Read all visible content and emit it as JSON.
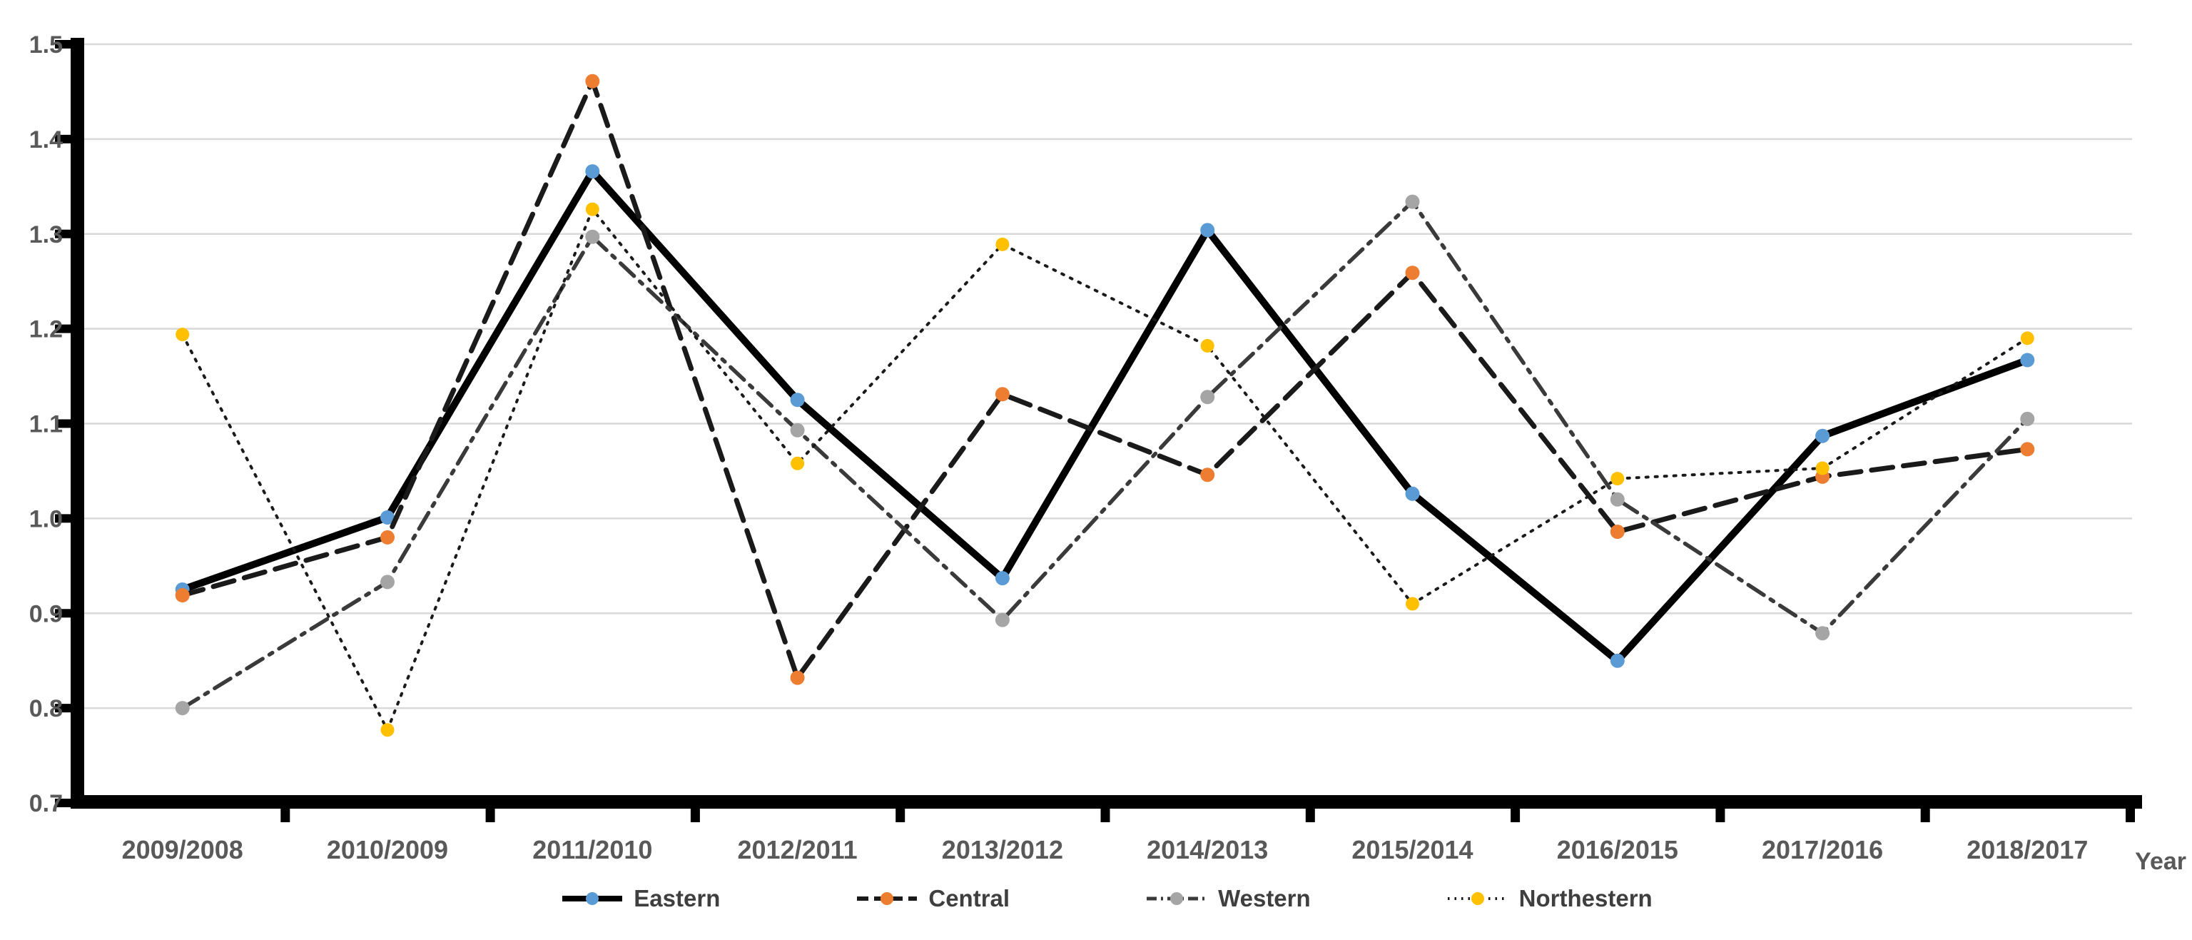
{
  "chart_data": {
    "type": "line",
    "title": "",
    "xlabel": "Year",
    "ylabel": "",
    "categories": [
      "2009/2008",
      "2010/2009",
      "2011/2010",
      "2012/2011",
      "2013/2012",
      "2014/2013",
      "2015/2014",
      "2016/2015",
      "2017/2016",
      "2018/2017"
    ],
    "series": [
      {
        "name": "Eastern",
        "marker_color": "#5B9BD5",
        "line_color": "#000000",
        "line_style": "solid",
        "values": [
          0.925,
          1.001,
          1.366,
          1.125,
          0.937,
          1.304,
          1.026,
          0.85,
          1.087,
          1.167
        ]
      },
      {
        "name": "Central",
        "marker_color": "#ED7D31",
        "line_color": "#1a1a1a",
        "line_style": "dash",
        "values": [
          0.919,
          0.98,
          1.461,
          0.832,
          1.131,
          1.046,
          1.259,
          0.986,
          1.044,
          1.073
        ]
      },
      {
        "name": "Western",
        "marker_color": "#A5A5A5",
        "line_color": "#3a3a3a",
        "line_style": "dashdot",
        "values": [
          0.8,
          0.933,
          1.297,
          1.093,
          0.893,
          1.128,
          1.334,
          1.02,
          0.879,
          1.105
        ]
      },
      {
        "name": "Northestern",
        "marker_color": "#FFC000",
        "line_color": "#1a1a1a",
        "line_style": "dot",
        "values": [
          1.194,
          0.777,
          1.326,
          1.058,
          1.289,
          1.182,
          0.91,
          1.042,
          1.053,
          1.19
        ]
      }
    ],
    "ylim": [
      0.7,
      1.5
    ],
    "ytick_step": 0.1,
    "ytick_labels": [
      "1.5",
      "1.4",
      "1.3",
      "1.2",
      "1.1",
      "1.0",
      "0.9",
      "0.8",
      "0.7"
    ],
    "grid": true,
    "gridline_color": "#D9D9D9",
    "axis_color": "#000000",
    "axis_label_color": "#595959",
    "legend_text_color": "#3f3f3f",
    "legend_position": "bottom"
  }
}
